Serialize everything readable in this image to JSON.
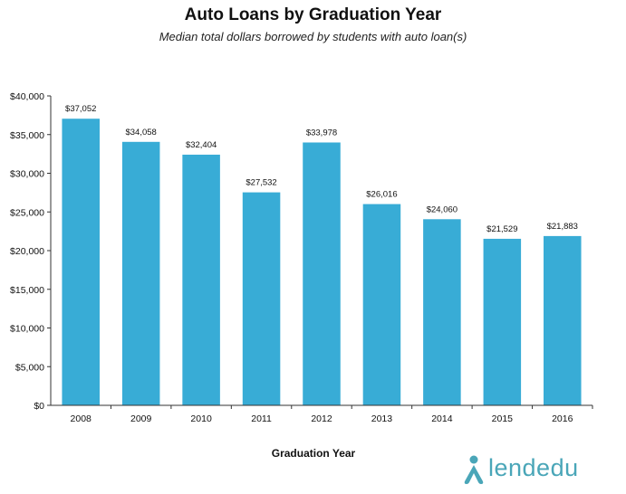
{
  "header": {
    "title": "Auto Loans by Graduation Year",
    "subtitle": "Median total dollars borrowed by students with auto loan(s)"
  },
  "brand": {
    "name": "lendedu",
    "color": "#4aa6b8"
  },
  "colors": {
    "bar": "#38acd6",
    "axis": "#333333"
  },
  "chart_data": {
    "type": "bar",
    "title": "Auto Loans by Graduation Year",
    "subtitle": "Median total dollars borrowed by students with auto loan(s)",
    "xlabel": "Graduation Year",
    "ylabel": "",
    "categories": [
      "2008",
      "2009",
      "2010",
      "2011",
      "2012",
      "2013",
      "2014",
      "2015",
      "2016"
    ],
    "values": [
      37052,
      34058,
      32404,
      27532,
      33978,
      26016,
      24060,
      21529,
      21883
    ],
    "value_labels": [
      "$37,052",
      "$34,058",
      "$32,404",
      "$27,532",
      "$33,978",
      "$26,016",
      "$24,060",
      "$21,529",
      "$21,883"
    ],
    "ylim": [
      0,
      40000
    ],
    "yticks": [
      0,
      5000,
      10000,
      15000,
      20000,
      25000,
      30000,
      35000,
      40000
    ],
    "ytick_labels": [
      "$0",
      "$5,000",
      "$10,000",
      "$15,000",
      "$20,000",
      "$25,000",
      "$30,000",
      "$35,000",
      "$40,000"
    ],
    "grid": false,
    "legend": "none"
  }
}
